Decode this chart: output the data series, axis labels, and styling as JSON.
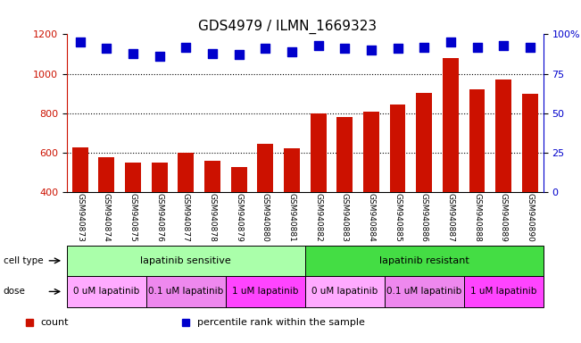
{
  "title": "GDS4979 / ILMN_1669323",
  "samples": [
    "GSM940873",
    "GSM940874",
    "GSM940875",
    "GSM940876",
    "GSM940877",
    "GSM940878",
    "GSM940879",
    "GSM940880",
    "GSM940881",
    "GSM940882",
    "GSM940883",
    "GSM940884",
    "GSM940885",
    "GSM940886",
    "GSM940887",
    "GSM940888",
    "GSM940889",
    "GSM940890"
  ],
  "counts": [
    625,
    575,
    548,
    548,
    600,
    558,
    525,
    645,
    620,
    800,
    782,
    810,
    845,
    905,
    1080,
    920,
    970,
    900
  ],
  "percentile_ranks": [
    95,
    91,
    88,
    86,
    92,
    88,
    87,
    91,
    89,
    93,
    91,
    90,
    91,
    92,
    95,
    92,
    93,
    92
  ],
  "bar_color": "#cc1100",
  "dot_color": "#0000cc",
  "ylim_left": [
    400,
    1200
  ],
  "ylim_right": [
    0,
    100
  ],
  "yticks_left": [
    400,
    600,
    800,
    1000,
    1200
  ],
  "yticks_right": [
    0,
    25,
    50,
    75,
    100
  ],
  "ytick_labels_right": [
    "0",
    "25",
    "50",
    "75",
    "100%"
  ],
  "grid_values": [
    600,
    800,
    1000
  ],
  "cell_type_groups": [
    {
      "label": "lapatinib sensitive",
      "start": 0,
      "end": 9,
      "color": "#aaffaa"
    },
    {
      "label": "lapatinib resistant",
      "start": 9,
      "end": 18,
      "color": "#44dd44"
    }
  ],
  "dose_groups": [
    {
      "label": "0 uM lapatinib",
      "start": 0,
      "end": 3,
      "color": "#ffaaff"
    },
    {
      "label": "0.1 uM lapatinib",
      "start": 3,
      "end": 6,
      "color": "#ee88ee"
    },
    {
      "label": "1 uM lapatinib",
      "start": 6,
      "end": 9,
      "color": "#ff44ff"
    },
    {
      "label": "0 uM lapatinib",
      "start": 9,
      "end": 12,
      "color": "#ffaaff"
    },
    {
      "label": "0.1 uM lapatinib",
      "start": 12,
      "end": 15,
      "color": "#ee88ee"
    },
    {
      "label": "1 uM lapatinib",
      "start": 15,
      "end": 18,
      "color": "#ff44ff"
    }
  ],
  "legend_items": [
    {
      "label": "count",
      "color": "#cc1100"
    },
    {
      "label": "percentile rank within the sample",
      "color": "#0000cc"
    }
  ],
  "ylabel_left_color": "#cc1100",
  "ylabel_right_color": "#0000cc",
  "title_fontsize": 11,
  "tick_fontsize": 8,
  "bar_width": 0.6,
  "dot_size": 55,
  "background_color": "#ffffff"
}
